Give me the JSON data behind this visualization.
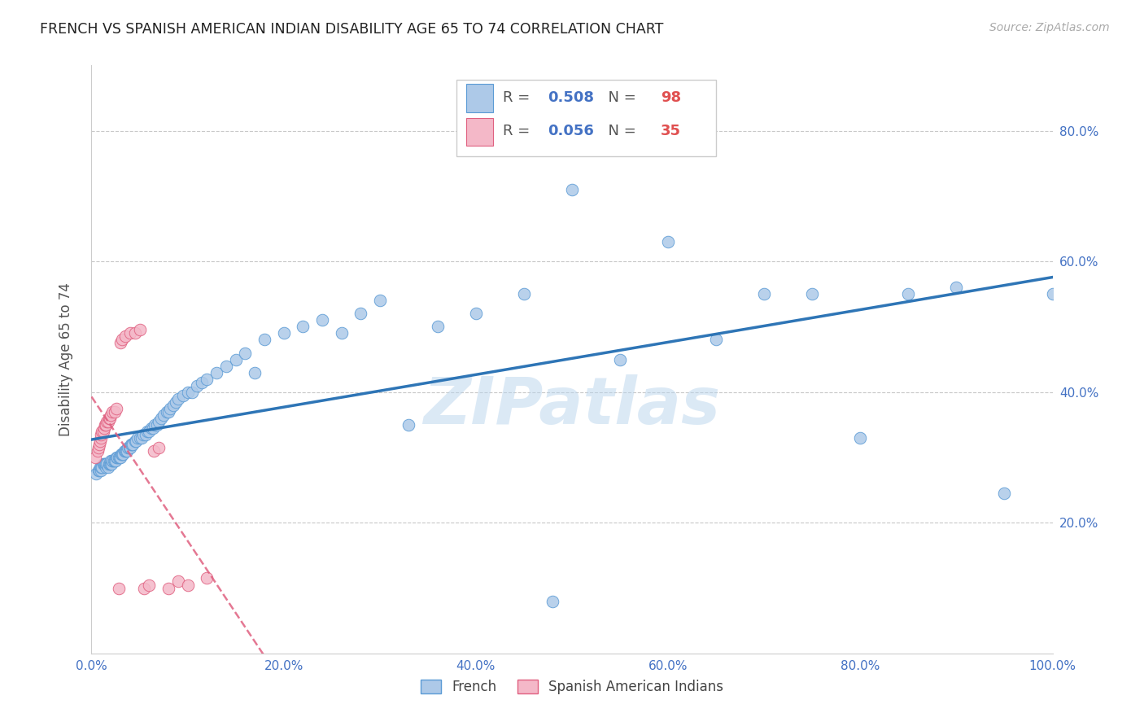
{
  "title": "FRENCH VS SPANISH AMERICAN INDIAN DISABILITY AGE 65 TO 74 CORRELATION CHART",
  "source": "Source: ZipAtlas.com",
  "ylabel": "Disability Age 65 to 74",
  "watermark": "ZIPatlas",
  "xlim": [
    0.0,
    1.0
  ],
  "ylim": [
    0.0,
    0.9
  ],
  "xticks": [
    0.0,
    0.2,
    0.4,
    0.6,
    0.8,
    1.0
  ],
  "xticklabels": [
    "0.0%",
    "20.0%",
    "40.0%",
    "60.0%",
    "80.0%",
    "100.0%"
  ],
  "yticks_right": [
    0.2,
    0.4,
    0.6,
    0.8
  ],
  "yticklabels_right": [
    "20.0%",
    "40.0%",
    "60.0%",
    "80.0%"
  ],
  "french_color": "#adc9e8",
  "french_edge": "#5b9bd5",
  "spanish_color": "#f4b8c8",
  "spanish_edge": "#e06080",
  "french_R": 0.508,
  "french_N": 98,
  "spanish_R": 0.056,
  "spanish_N": 35,
  "french_line_color": "#2e75b6",
  "spanish_line_color": "#e06080",
  "background_color": "#ffffff",
  "grid_color": "#c8c8c8",
  "title_color": "#222222",
  "tick_color": "#4472c4",
  "r_value_color": "#4472c4",
  "n_value_color": "#e05050",
  "french_x": [
    0.005,
    0.007,
    0.008,
    0.009,
    0.01,
    0.01,
    0.011,
    0.012,
    0.013,
    0.014,
    0.015,
    0.015,
    0.016,
    0.017,
    0.018,
    0.019,
    0.02,
    0.02,
    0.021,
    0.022,
    0.022,
    0.023,
    0.024,
    0.025,
    0.026,
    0.027,
    0.028,
    0.029,
    0.03,
    0.031,
    0.032,
    0.033,
    0.034,
    0.035,
    0.036,
    0.037,
    0.038,
    0.039,
    0.04,
    0.041,
    0.042,
    0.043,
    0.045,
    0.046,
    0.048,
    0.05,
    0.052,
    0.054,
    0.056,
    0.058,
    0.06,
    0.062,
    0.064,
    0.066,
    0.068,
    0.07,
    0.072,
    0.075,
    0.078,
    0.08,
    0.082,
    0.085,
    0.088,
    0.09,
    0.095,
    0.1,
    0.105,
    0.11,
    0.115,
    0.12,
    0.13,
    0.14,
    0.15,
    0.16,
    0.17,
    0.18,
    0.2,
    0.22,
    0.24,
    0.26,
    0.28,
    0.3,
    0.33,
    0.36,
    0.4,
    0.45,
    0.5,
    0.55,
    0.6,
    0.65,
    0.7,
    0.75,
    0.8,
    0.85,
    0.9,
    0.95,
    1.0,
    0.48
  ],
  "french_y": [
    0.275,
    0.28,
    0.28,
    0.285,
    0.28,
    0.285,
    0.285,
    0.29,
    0.29,
    0.29,
    0.285,
    0.29,
    0.29,
    0.285,
    0.29,
    0.29,
    0.29,
    0.295,
    0.29,
    0.295,
    0.295,
    0.295,
    0.295,
    0.295,
    0.3,
    0.3,
    0.3,
    0.3,
    0.3,
    0.305,
    0.305,
    0.305,
    0.31,
    0.31,
    0.31,
    0.31,
    0.315,
    0.315,
    0.315,
    0.32,
    0.32,
    0.32,
    0.325,
    0.325,
    0.33,
    0.33,
    0.33,
    0.335,
    0.335,
    0.34,
    0.34,
    0.345,
    0.345,
    0.35,
    0.35,
    0.355,
    0.36,
    0.365,
    0.37,
    0.37,
    0.375,
    0.38,
    0.385,
    0.39,
    0.395,
    0.4,
    0.4,
    0.41,
    0.415,
    0.42,
    0.43,
    0.44,
    0.45,
    0.46,
    0.43,
    0.48,
    0.49,
    0.5,
    0.51,
    0.49,
    0.52,
    0.54,
    0.35,
    0.5,
    0.52,
    0.55,
    0.71,
    0.45,
    0.63,
    0.48,
    0.55,
    0.55,
    0.33,
    0.55,
    0.56,
    0.245,
    0.55,
    0.08
  ],
  "spanish_x": [
    0.004,
    0.006,
    0.007,
    0.008,
    0.009,
    0.01,
    0.01,
    0.011,
    0.012,
    0.013,
    0.014,
    0.015,
    0.016,
    0.017,
    0.018,
    0.019,
    0.02,
    0.022,
    0.024,
    0.026,
    0.028,
    0.03,
    0.032,
    0.035,
    0.04,
    0.045,
    0.05,
    0.055,
    0.06,
    0.065,
    0.07,
    0.08,
    0.09,
    0.1,
    0.12
  ],
  "spanish_y": [
    0.3,
    0.31,
    0.315,
    0.32,
    0.325,
    0.33,
    0.335,
    0.34,
    0.34,
    0.345,
    0.35,
    0.35,
    0.355,
    0.355,
    0.36,
    0.36,
    0.365,
    0.37,
    0.37,
    0.375,
    0.1,
    0.475,
    0.48,
    0.485,
    0.49,
    0.49,
    0.495,
    0.1,
    0.105,
    0.31,
    0.315,
    0.1,
    0.11,
    0.105,
    0.115
  ]
}
